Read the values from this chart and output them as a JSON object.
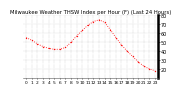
{
  "title": "Milwaukee Weather THSW Index per Hour (F) (Last 24 Hours)",
  "hours": [
    0,
    1,
    2,
    3,
    4,
    5,
    6,
    7,
    8,
    9,
    10,
    11,
    12,
    13,
    14,
    15,
    16,
    17,
    18,
    19,
    20,
    21,
    22,
    23
  ],
  "values": [
    55,
    52,
    48,
    45,
    43,
    42,
    42,
    44,
    50,
    57,
    63,
    69,
    73,
    75,
    72,
    64,
    55,
    47,
    40,
    34,
    28,
    23,
    20,
    18
  ],
  "line_color": "#ff0000",
  "marker_color": "#ff0000",
  "bg_color": "#ffffff",
  "grid_color": "#888888",
  "ylim": [
    10,
    80
  ],
  "ytick_values": [
    20,
    30,
    40,
    50,
    60,
    70,
    80
  ],
  "ytick_labels": [
    "20",
    "30",
    "40",
    "50",
    "60",
    "70",
    "80"
  ],
  "tick_fontsize": 3.5,
  "title_fontsize": 3.8,
  "line_width": 0.6,
  "marker_size": 1.5
}
